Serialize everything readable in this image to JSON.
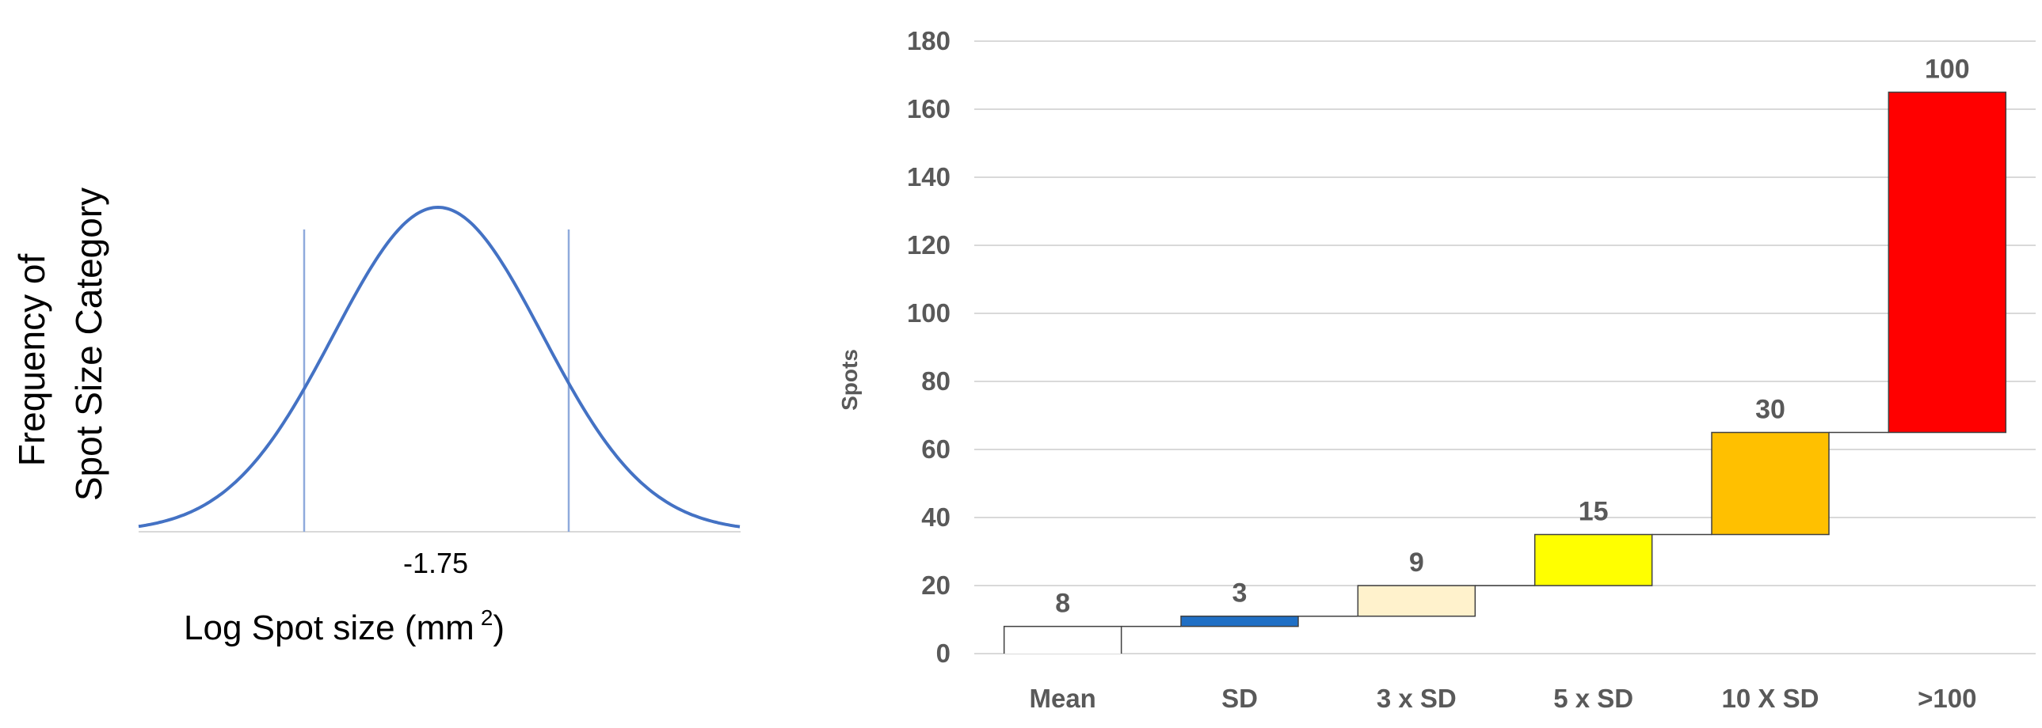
{
  "chart_data": [
    {
      "type": "line",
      "ylabel_line1": "Frequency of",
      "ylabel_line2": "Spot Size Category",
      "xlabel_main": "Log Spot size (mm",
      "xlabel_sup": "2",
      "xlabel_end": ")",
      "center_tick": "-1.75",
      "mean": -1.75,
      "curve_color": "#4472C4",
      "threshold_color": "#8FAADC"
    },
    {
      "type": "bar",
      "subtype": "waterfall",
      "ylabel": "Spots",
      "ylim": [
        0,
        180
      ],
      "yticks": [
        0,
        20,
        40,
        60,
        80,
        100,
        120,
        140,
        160,
        180
      ],
      "categories": [
        "Mean",
        "SD",
        "3 x SD",
        "5 x SD",
        "10 X SD",
        ">100"
      ],
      "values": [
        8,
        3,
        9,
        15,
        30,
        100
      ],
      "data_labels": [
        "8",
        "3",
        "9",
        "15",
        "30",
        "100"
      ],
      "base": [
        0,
        8,
        11,
        20,
        35,
        65
      ],
      "top": [
        8,
        11,
        20,
        35,
        65,
        165
      ],
      "colors": [
        "#FFFFFF",
        "#1F6FC5",
        "#FFF2CC",
        "#FFFF00",
        "#FFC000",
        "#FF0000"
      ],
      "grid": true,
      "legend": "none"
    }
  ]
}
